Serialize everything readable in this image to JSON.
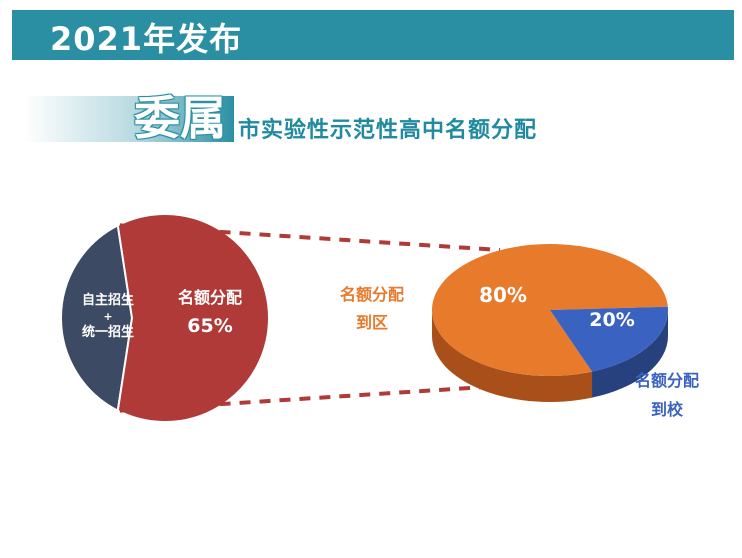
{
  "header": {
    "title": "2021年发布"
  },
  "subtitle": {
    "emphasis": "委属",
    "rest": "市实验性示范性高中名额分配"
  },
  "colors": {
    "header": "#2a8fa3",
    "quota": "#b03a38",
    "other": "#3d4a63",
    "district": "#e87a2c",
    "school": "#3a62c0",
    "connector": "#b03a38"
  },
  "chart_data": [
    {
      "type": "pie",
      "slices": [
        {
          "label_lines": [
            "自主招生",
            "+",
            "统一招生"
          ],
          "value": 35,
          "value_label": ""
        },
        {
          "label_lines": [
            "名额分配"
          ],
          "value": 65,
          "value_label": "65%"
        }
      ]
    },
    {
      "type": "pie",
      "slices": [
        {
          "label_lines": [
            "名额分配",
            "到区"
          ],
          "value": 80,
          "value_label": "80%"
        },
        {
          "label_lines": [
            "名额分配",
            "到校"
          ],
          "value": 20,
          "value_label": "20%"
        }
      ]
    }
  ]
}
